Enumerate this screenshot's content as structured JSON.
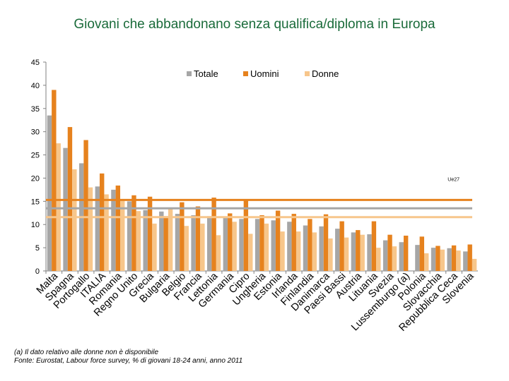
{
  "title": "Giovani che abbandonano senza qualifica/diploma in Europa",
  "footnote": "(a) Il dato relativo alle donne non è disponibile",
  "source": "Fonte: Eurostat, Labour force survey, % di giovani 18-24 anni, anno 2011",
  "chart_data": {
    "type": "bar",
    "categories": [
      "Malta",
      "Spagna",
      "Portogallo",
      "ITALIA",
      "Romania",
      "Regno Unito",
      "Grecia",
      "Bulgaria",
      "Belgio",
      "Francia",
      "Lettonia",
      "Germania",
      "Cipro",
      "Ungheria",
      "Estonia",
      "Irlanda",
      "Finlandia",
      "Danimarca",
      "Paesi Bassi",
      "Austria",
      "Lituania",
      "Svezia",
      "Lussemburgo (a)",
      "Polonia",
      "Slovacchia",
      "Repubblica Ceca",
      "Slovenia"
    ],
    "series": [
      {
        "name": "Totale",
        "color": "#a6a6a6",
        "values": [
          33.5,
          26.5,
          23.2,
          18.2,
          17.5,
          15.0,
          13.1,
          12.8,
          12.3,
          12.0,
          11.8,
          11.5,
          11.2,
          11.2,
          10.9,
          10.6,
          9.8,
          9.6,
          9.1,
          8.3,
          7.9,
          6.6,
          6.2,
          5.6,
          5.0,
          4.9,
          4.2
        ]
      },
      {
        "name": "Uomini",
        "color": "#e6821e",
        "values": [
          39.0,
          31.0,
          28.2,
          21.0,
          18.4,
          16.3,
          16.0,
          11.8,
          14.8,
          13.9,
          15.8,
          12.4,
          15.5,
          12.0,
          13.0,
          12.3,
          11.2,
          12.2,
          10.7,
          8.8,
          10.7,
          7.8,
          7.6,
          7.4,
          5.4,
          5.5,
          5.7
        ]
      },
      {
        "name": "Donne",
        "color": "#f7c68b",
        "values": [
          27.5,
          21.9,
          18.0,
          16.5,
          15.1,
          12.9,
          10.2,
          13.5,
          9.7,
          10.2,
          7.7,
          10.6,
          8.0,
          10.2,
          8.5,
          8.5,
          8.3,
          7.0,
          7.2,
          7.8,
          5.0,
          5.3,
          null,
          3.8,
          4.6,
          4.4,
          2.6
        ]
      }
    ],
    "reference_lines": [
      {
        "label": "Ue27",
        "series": "Uomini",
        "value": 15.3
      },
      {
        "label": "",
        "series": "Totale",
        "value": 13.5
      },
      {
        "label": "",
        "series": "Donne",
        "value": 11.6
      }
    ],
    "ylim": [
      0,
      45
    ],
    "yticks": [
      0,
      5,
      10,
      15,
      20,
      25,
      30,
      35,
      40,
      45
    ],
    "legend_position": "top-center"
  }
}
